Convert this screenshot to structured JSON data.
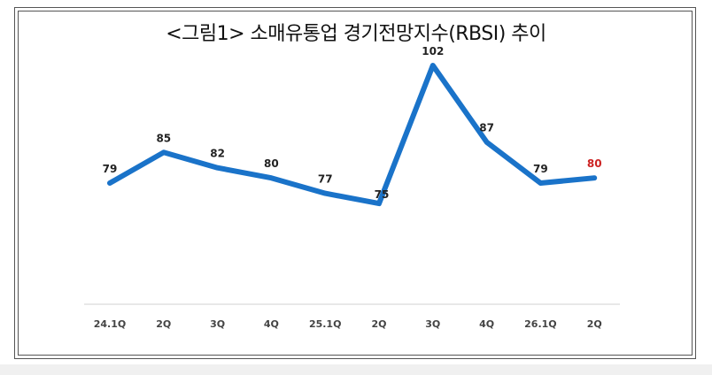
{
  "chart_data": {
    "type": "line",
    "title": "<그림1> 소매유통업 경기전망지수(RBSI) 추이",
    "categories": [
      "24.1Q",
      "2Q",
      "3Q",
      "4Q",
      "25.1Q",
      "2Q",
      "3Q",
      "4Q",
      "26.1Q",
      "2Q"
    ],
    "series": [
      {
        "values": [
          79,
          85,
          82,
          80,
          77,
          75,
          102,
          87,
          79,
          80
        ]
      }
    ],
    "value_labels": [
      "79",
      "85",
      "82",
      "80",
      "77",
      "75",
      "102",
      "87",
      "79",
      "80"
    ],
    "ylim": [
      40,
      110
    ],
    "grid": false,
    "colors": {
      "line": "#1a73c9",
      "label": "#222222",
      "highlight_label": "#cc2222",
      "axis": "#d0d0d0",
      "tick_text": "#444444"
    }
  }
}
